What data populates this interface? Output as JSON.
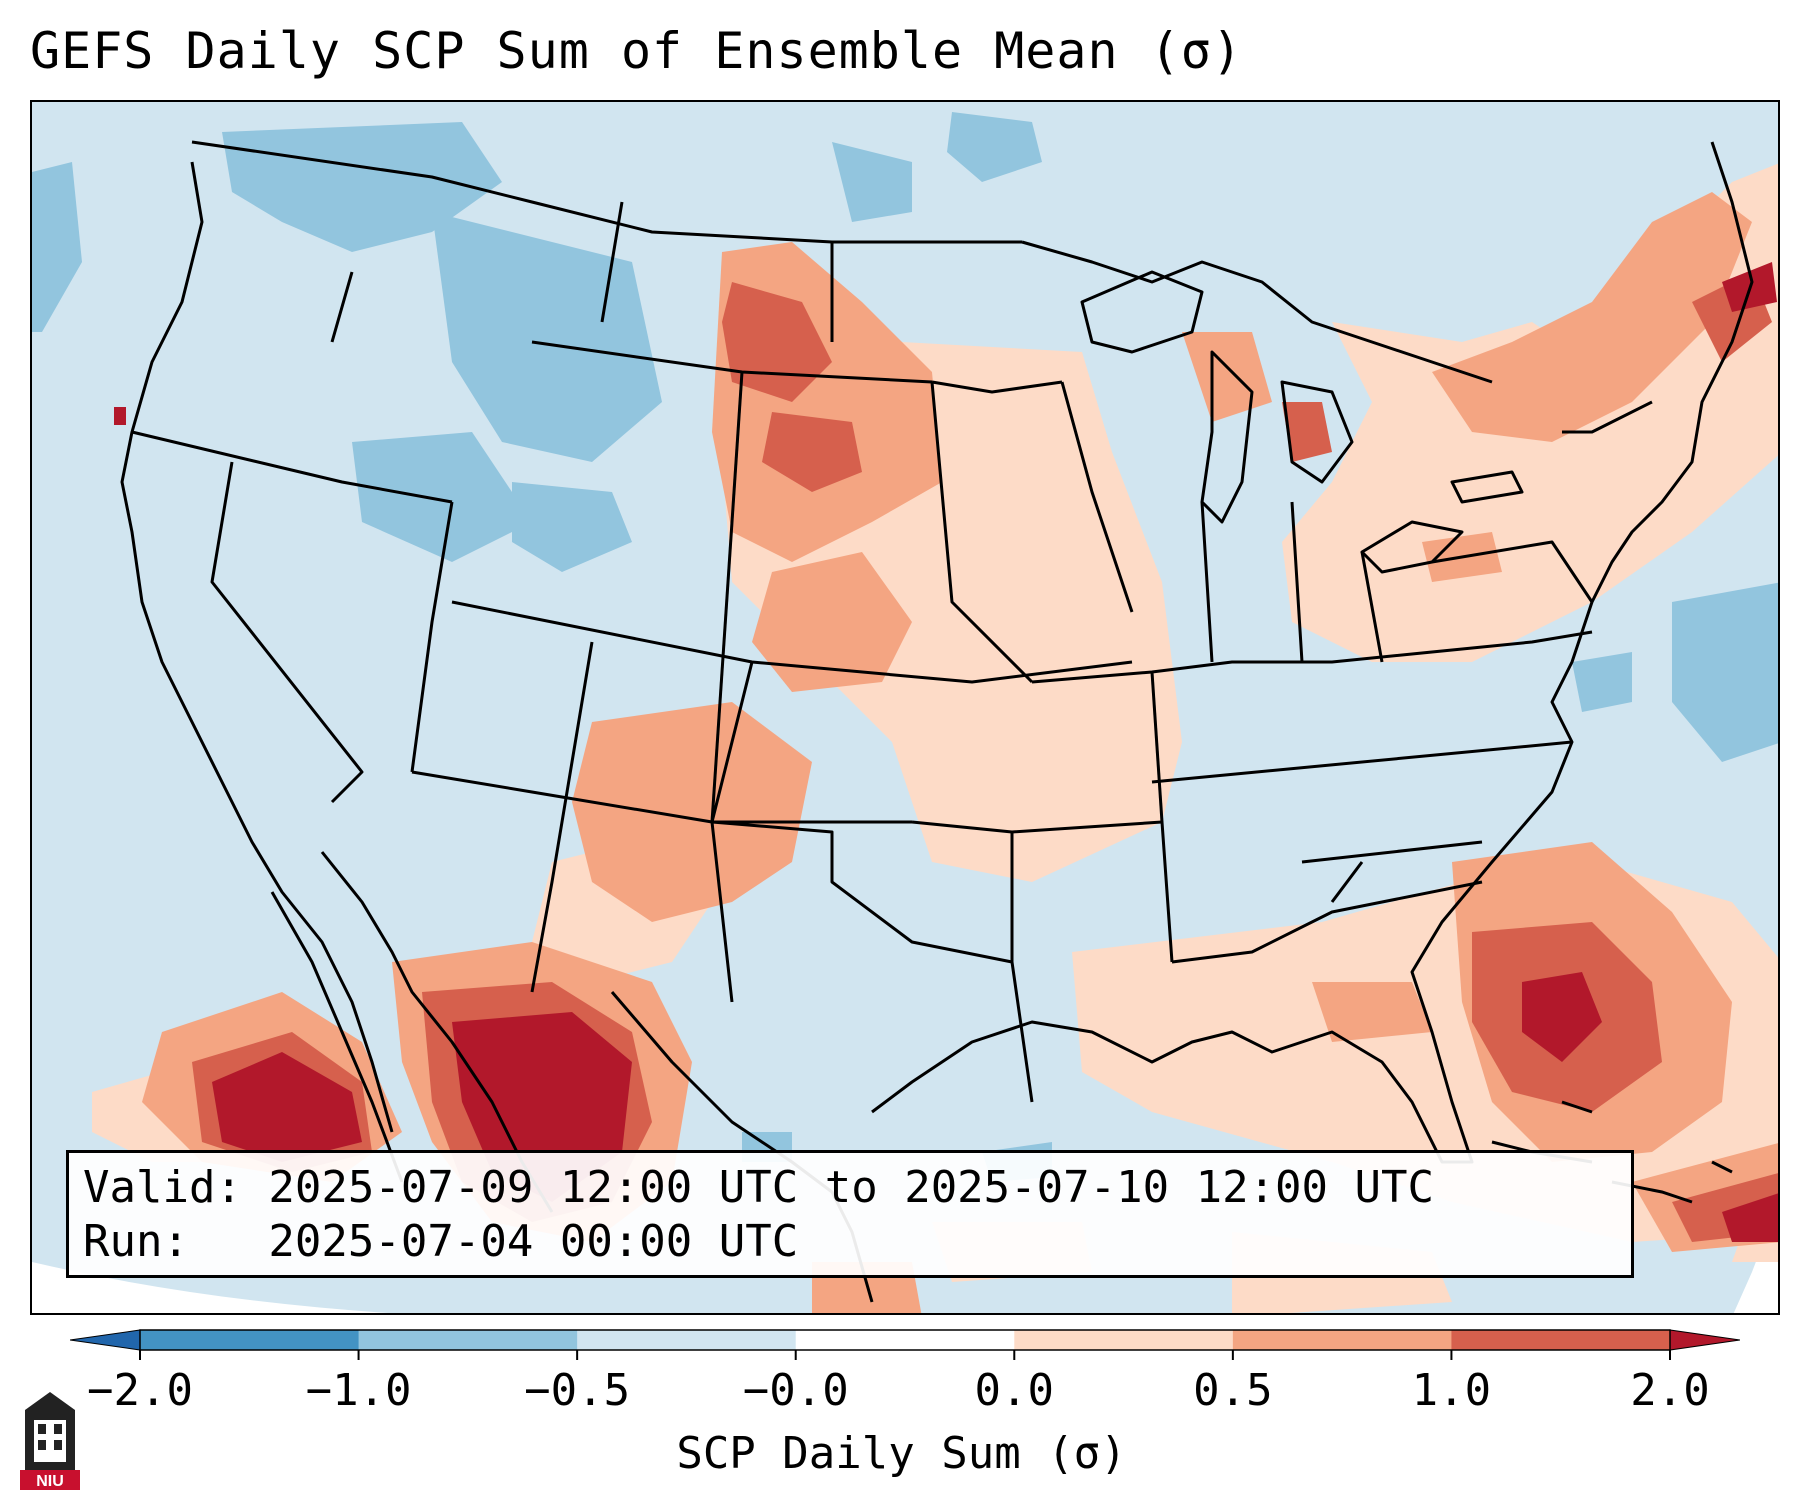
{
  "title": "GEFS Daily SCP Sum of Ensemble Mean (σ)",
  "info": {
    "valid_line": "Valid: 2025-07-09 12:00 UTC to 2025-07-10 12:00 UTC",
    "run_line": "Run:   2025-07-04 00:00 UTC"
  },
  "colorbar": {
    "label": "SCP Daily Sum (σ)",
    "ticks": [
      "−2.0",
      "−1.0",
      "−0.5",
      "−0.0",
      "0.0",
      "0.5",
      "1.0",
      "2.0"
    ],
    "colors": [
      "#2166ac",
      "#4393c3",
      "#92c5de",
      "#d1e5f0",
      "#ffffff",
      "#fddbc7",
      "#f4a582",
      "#d6604d",
      "#b2182b"
    ]
  },
  "logo": {
    "text": "NIU",
    "color": "#c8102e"
  }
}
